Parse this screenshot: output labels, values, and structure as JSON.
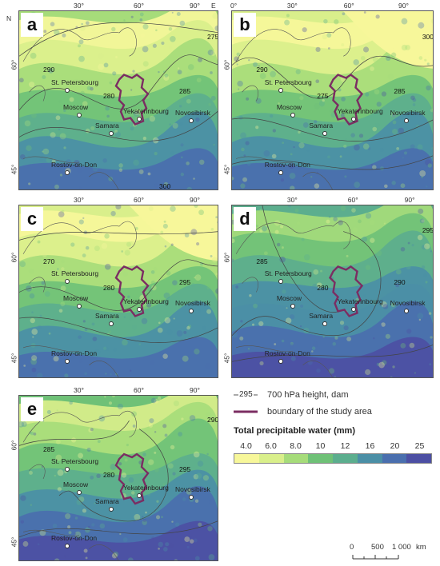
{
  "axis_ticks": {
    "lon": [
      "30°",
      "60°",
      "90°"
    ],
    "lat": [
      "60°",
      "45°"
    ],
    "lon_b": [
      "0°",
      "30°",
      "60°",
      "90°"
    ],
    "N": "N",
    "E": "E"
  },
  "cities": {
    "stp": "St. Petersbourg",
    "moscow": "Moscow",
    "samara": "Samara",
    "yek": "Yekaterinbourg",
    "nov": "Novosibirsk",
    "rostov": "Rostov-on-Don"
  },
  "panels": {
    "a": {
      "label": "a",
      "iso": [
        "290",
        "280",
        "285",
        "275",
        "300"
      ]
    },
    "b": {
      "label": "b",
      "iso": [
        "290",
        "275",
        "285",
        "300"
      ]
    },
    "c": {
      "label": "c",
      "iso": [
        "270",
        "280",
        "295"
      ]
    },
    "d": {
      "label": "d",
      "iso": [
        "285",
        "280",
        "290",
        "295"
      ]
    },
    "e": {
      "label": "e",
      "iso": [
        "285",
        "280",
        "295",
        "290"
      ]
    }
  },
  "legend": {
    "isoline_label": "295",
    "isoline_text": "700 hPa height, dam",
    "boundary_text": "boundary of the study area",
    "colorbar_title": "Total precipitable water (mm)",
    "ticks": [
      "4.0",
      "6.0",
      "8.0",
      "10",
      "12",
      "16",
      "20",
      "25"
    ],
    "colors": [
      "#f7f79a",
      "#d9ef8b",
      "#a6dc7a",
      "#6fc177",
      "#5cae8e",
      "#4b8fa6",
      "#4a6fae",
      "#4c4fa3"
    ]
  },
  "scale": {
    "labels": [
      "0",
      "500",
      "1 000",
      "km"
    ]
  },
  "colors": {
    "boundary": "#7b2d62",
    "isoline": "#444444"
  }
}
